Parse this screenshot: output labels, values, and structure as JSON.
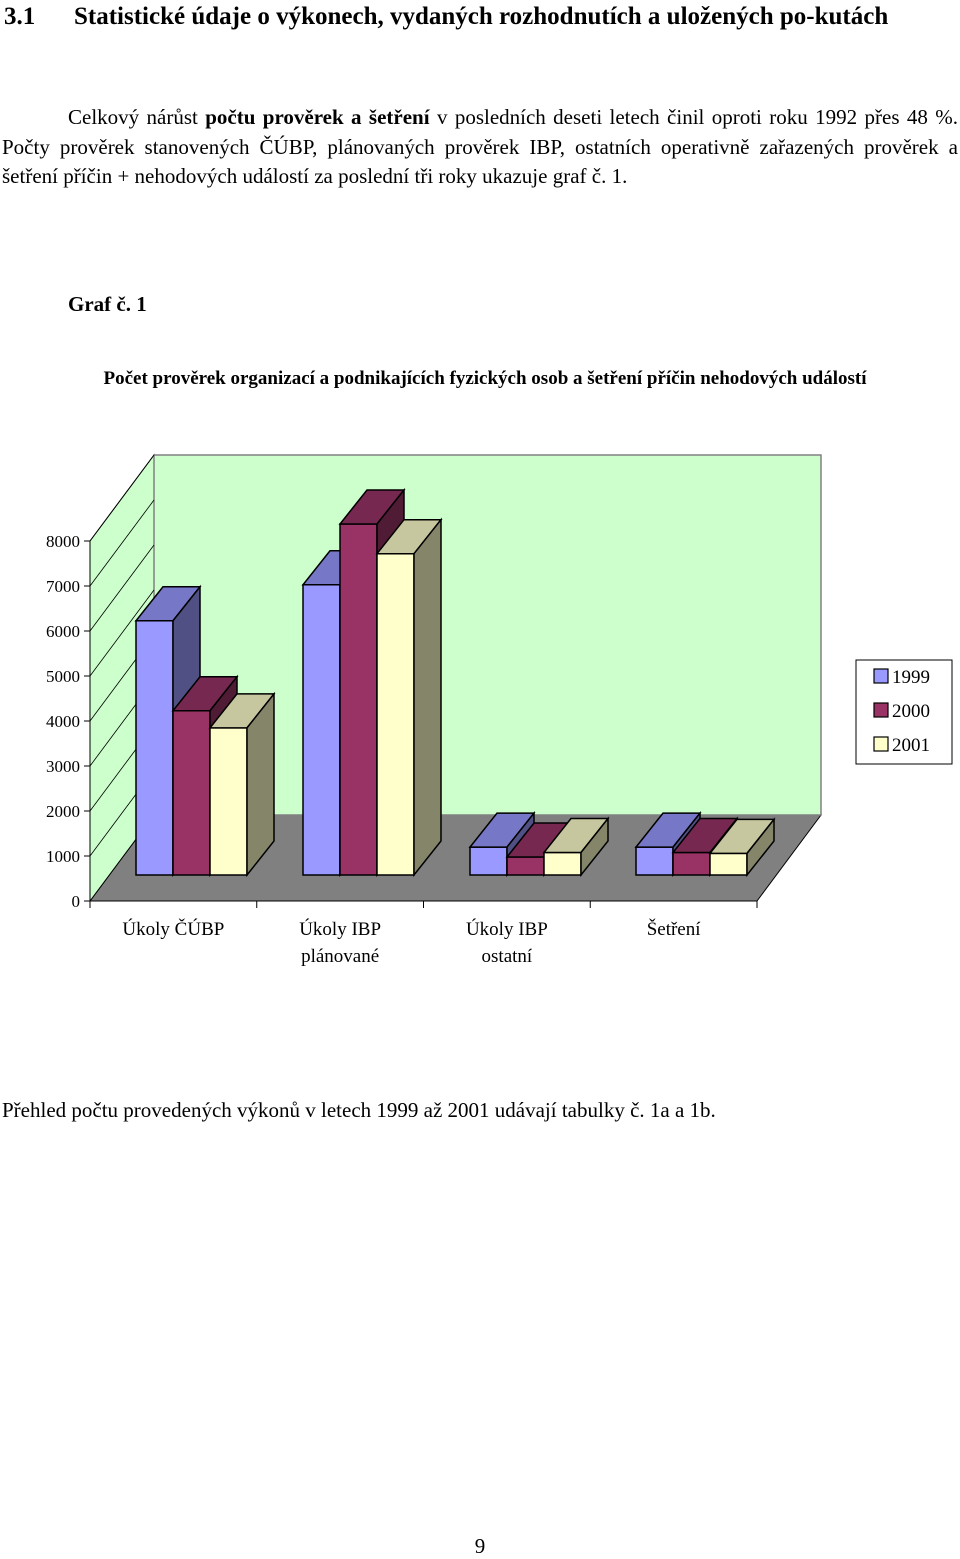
{
  "heading": {
    "number": "3.1",
    "title": "Statistické údaje o výkonech, vydaných rozhodnutích a uložených po-kutách"
  },
  "intro": {
    "part1": "Celkový nárůst ",
    "bold": "počtu prověrek a šetření",
    "part2": " v posledních deseti letech činil oproti roku 1992 přes 48 %. Počty prověrek stanovených ČÚBP, plánovaných prověrek IBP, ostatních operativně zařazených prověrek a šetření příčin + nehodových událostí za poslední tři roky ukazuje graf č. 1."
  },
  "graph_label": "Graf č. 1",
  "chart_title": "Počet prověrek organizací a podnikajících fyzických osob a šetření příčin nehodových událostí",
  "chart_data": {
    "type": "bar",
    "style": "3d-clustered-column",
    "categories": [
      "Úkoly ČÚBP",
      "Úkoly IBP plánované",
      "Úkoly IBP ostatní",
      "Šetření"
    ],
    "series": [
      {
        "name": "1999",
        "values": [
          5650,
          6450,
          620,
          620
        ],
        "color": "#9999ff"
      },
      {
        "name": "2000",
        "values": [
          3650,
          7800,
          400,
          500
        ],
        "color": "#993366"
      },
      {
        "name": "2001",
        "values": [
          3270,
          7140,
          500,
          480
        ],
        "color": "#ffffcc"
      }
    ],
    "yticks": [
      0,
      1000,
      2000,
      3000,
      4000,
      5000,
      6000,
      7000,
      8000
    ],
    "ylim": [
      0,
      8000
    ],
    "legend_position": "right",
    "back_wall_color": "#ccffcc",
    "floor_color": "#808080"
  },
  "summary": "Přehled počtu provedených výkonů v letech 1999 až 2001 udávají tabulky č. 1a a 1b.",
  "page_number": "9"
}
